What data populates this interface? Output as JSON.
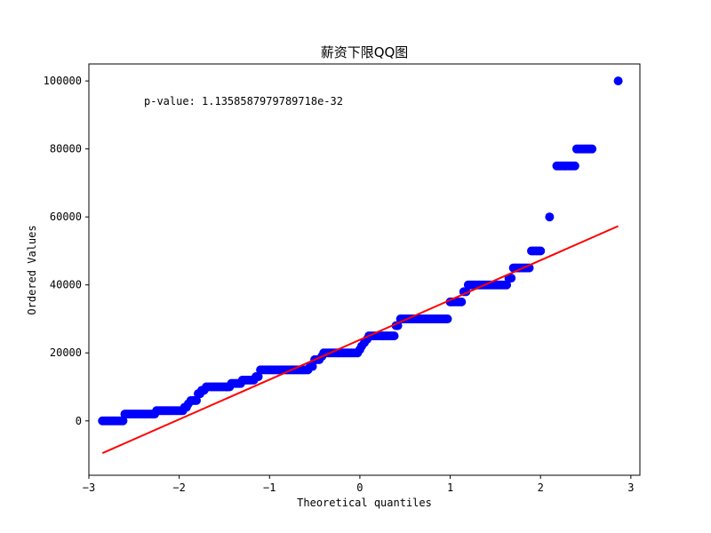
{
  "chart_data": {
    "type": "scatter",
    "title": "薪资下限QQ图",
    "xlabel": "Theoretical quantiles",
    "ylabel": "Ordered Values",
    "annotation": "p-value: 1.1358587979789718e-32",
    "xlim": [
      -3.0,
      3.1
    ],
    "ylim": [
      -16000,
      105000
    ],
    "xticks": [
      -3,
      -2,
      -1,
      0,
      1,
      2,
      3
    ],
    "xtick_labels": [
      "−3",
      "−2",
      "−1",
      "0",
      "1",
      "2",
      "3"
    ],
    "yticks": [
      0,
      20000,
      40000,
      60000,
      80000,
      100000
    ],
    "ytick_labels": [
      "0",
      "20000",
      "40000",
      "60000",
      "80000",
      "100000"
    ],
    "grid": false,
    "marker_color": "#0000ff",
    "line_color": "#ff0000",
    "series": [
      {
        "kind": "points",
        "x": [
          -2.85,
          -2.56,
          -2.38,
          -2.25,
          -2.15,
          -2.07,
          -2.0,
          -1.94,
          -1.9,
          -1.87,
          -1.83,
          -1.79,
          -1.75,
          -1.7,
          -1.65,
          -1.55,
          -1.4,
          -1.3,
          -1.2,
          -1.15,
          -1.1,
          -1.05,
          -1.0,
          -0.9,
          -0.8,
          -0.7,
          -0.6,
          -0.55,
          -0.5,
          -0.45,
          -0.42,
          -0.4,
          -0.35,
          -0.2,
          -0.05,
          0.0,
          0.02,
          0.05,
          0.08,
          0.1,
          0.15,
          0.2,
          0.3,
          0.4,
          0.42,
          0.45,
          0.6,
          0.8,
          0.97,
          1.0,
          1.05,
          1.1,
          1.15,
          1.2,
          1.3,
          1.45,
          1.6,
          1.65,
          1.7,
          1.85,
          1.9,
          1.95,
          2.0,
          2.1,
          2.18,
          2.28,
          2.4,
          2.57,
          2.86
        ],
        "y": [
          0,
          2000,
          2000,
          3000,
          3000,
          3000,
          3000,
          4000,
          5000,
          6000,
          6000,
          8000,
          9000,
          10000,
          10000,
          10000,
          11000,
          12000,
          12000,
          13000,
          15000,
          15000,
          15000,
          15000,
          15000,
          15000,
          15000,
          16000,
          18000,
          18000,
          19000,
          20000,
          20000,
          20000,
          20000,
          21000,
          22000,
          23000,
          24000,
          25000,
          25000,
          25000,
          25000,
          28000,
          28000,
          30000,
          30000,
          30000,
          30000,
          35000,
          35000,
          35000,
          38000,
          40000,
          40000,
          40000,
          40000,
          42000,
          45000,
          45000,
          50000,
          50000,
          50000,
          60000,
          75000,
          75000,
          80000,
          80000,
          100000
        ]
      },
      {
        "kind": "fit-line",
        "x": [
          -2.85,
          2.86
        ],
        "y": [
          -9500,
          57300
        ]
      }
    ]
  }
}
